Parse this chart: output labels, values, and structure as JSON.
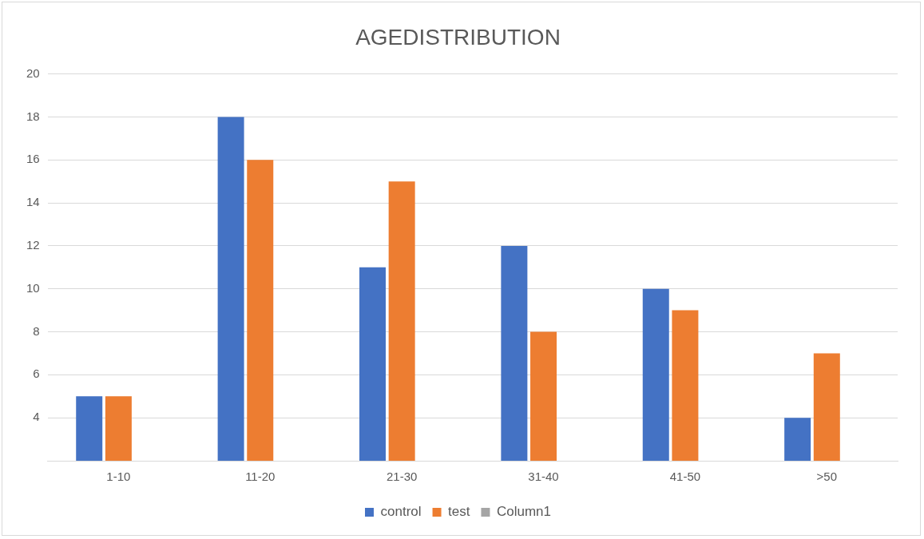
{
  "chart_data": {
    "type": "bar",
    "title": "AGEDISTRIBUTION",
    "categories": [
      "1-10",
      "11-20",
      "21-30",
      "31-40",
      "41-50",
      ">50"
    ],
    "series": [
      {
        "name": "control",
        "color": "#4472c4",
        "values": [
          5,
          18,
          11,
          12,
          10,
          4
        ]
      },
      {
        "name": "test",
        "color": "#ed7d31",
        "values": [
          5,
          16,
          15,
          8,
          9,
          7
        ]
      },
      {
        "name": "Column1",
        "color": "#a5a5a5",
        "values": [
          null,
          null,
          null,
          null,
          null,
          null
        ]
      }
    ],
    "ylim": [
      2,
      20
    ],
    "yticks": [
      {
        "value": 2,
        "label": null
      },
      4,
      6,
      8,
      10,
      12,
      14,
      16,
      18,
      20
    ],
    "grid": "y",
    "legend": "bottom"
  }
}
